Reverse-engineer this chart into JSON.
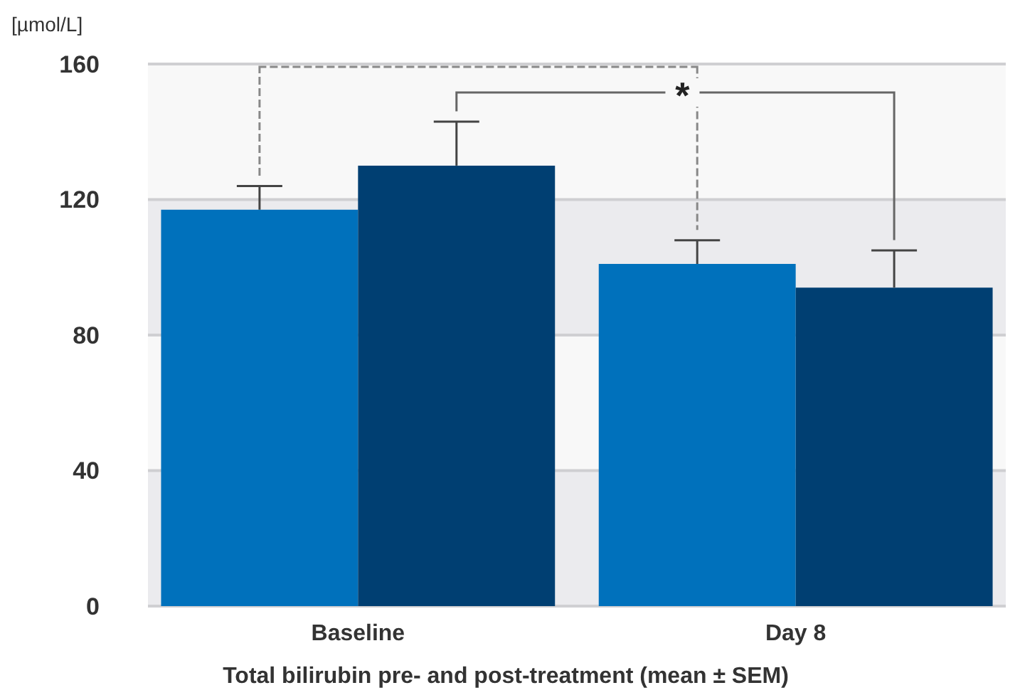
{
  "chart_data": {
    "type": "bar",
    "ylabel": "[µmol/L]",
    "xlabel": "Total bilirubin pre- and post-treatment (mean ± SEM)",
    "categories": [
      "Baseline",
      "Day 8"
    ],
    "series": [
      {
        "color": "#0071bc",
        "values": [
          117,
          101
        ],
        "errors": [
          [
            117,
            124
          ],
          [
            101,
            108
          ]
        ]
      },
      {
        "color": "#003f72",
        "values": [
          130,
          94
        ],
        "errors": [
          [
            130,
            143
          ],
          [
            94,
            105
          ]
        ]
      }
    ],
    "ylim": [
      0,
      160
    ],
    "yticks": [
      0,
      40,
      80,
      120,
      160
    ],
    "grid": "y",
    "annotations": [
      "*"
    ]
  }
}
